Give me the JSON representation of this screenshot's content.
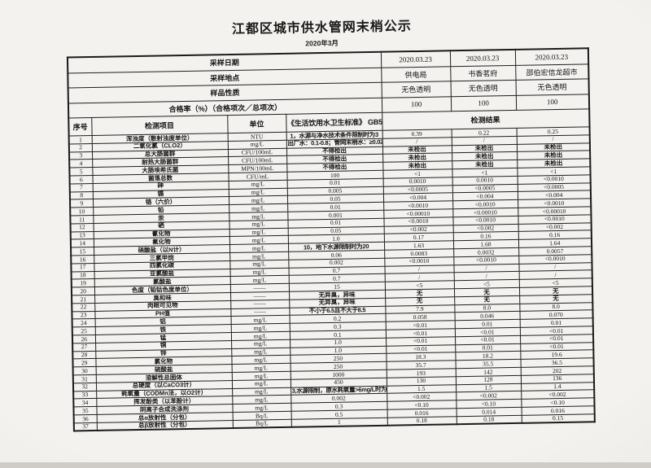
{
  "page": {
    "title": "江都区城市供水管网末梢公示",
    "subtitle": "2020年3月"
  },
  "info": {
    "rows": [
      {
        "label": "采样日期",
        "values": [
          "2020.03.23",
          "2020.03.23",
          "2020.03.23"
        ]
      },
      {
        "label": "采样地点",
        "values": [
          "供电局",
          "书香茗府",
          "邵伯宏信龙超市"
        ]
      },
      {
        "label": "样品性质",
        "values": [
          "无色透明",
          "无色透明",
          "无色透明"
        ]
      },
      {
        "label": "合格率（%）（合格项次／总项次）",
        "values": [
          "100",
          "100",
          "100"
        ]
      }
    ]
  },
  "table": {
    "headers": {
      "no": "序号",
      "item": "检测项目",
      "unit": "单位",
      "standard": "《生活饮用水卫生标准》 GB5749",
      "result": "检测结果"
    },
    "rows": [
      {
        "no": "1",
        "item": "浑浊度（散射浊度单位）",
        "unit": "NTU",
        "standard": "1，水源与净水技术条件限制时为3",
        "results": [
          "0.39",
          "0.22",
          "0.25"
        ]
      },
      {
        "no": "2",
        "item": "二氧化氯（CLO2）",
        "unit": "mg/L",
        "standard": "出厂水：0.1-0.8；管网末梢水：≥0.02",
        "results": [
          "/",
          "/",
          "/"
        ]
      },
      {
        "no": "3",
        "item": "总大肠菌群",
        "unit": "CFU/100mL",
        "standard": "不得检出",
        "results": [
          "未检出",
          "未检出",
          "未检出"
        ]
      },
      {
        "no": "4",
        "item": "耐热大肠菌群",
        "unit": "CFU/100mL",
        "standard": "不得检出",
        "results": [
          "未检出",
          "未检出",
          "未检出"
        ]
      },
      {
        "no": "5",
        "item": "大肠埃希氏菌",
        "unit": "MPN/100mL",
        "standard": "不得检出",
        "results": [
          "未检出",
          "未检出",
          "未检出"
        ]
      },
      {
        "no": "6",
        "item": "菌落总数",
        "unit": "CFU/mL",
        "standard": "100",
        "results": [
          "<1",
          "<1",
          "<1"
        ]
      },
      {
        "no": "7",
        "item": "砷",
        "unit": "mg/L",
        "standard": "0.01",
        "results": [
          "0.0010",
          "0.0010",
          "<0.0010"
        ]
      },
      {
        "no": "8",
        "item": "镉",
        "unit": "mg/L",
        "standard": "0.005",
        "results": [
          "<0.0005",
          "<0.0005",
          "<0.0005"
        ]
      },
      {
        "no": "9",
        "item": "铬（六价）",
        "unit": "mg/L",
        "standard": "0.05",
        "results": [
          "<0.004",
          "<0.004",
          "<0.004"
        ]
      },
      {
        "no": "10",
        "item": "铅",
        "unit": "mg/L",
        "standard": "0.01",
        "results": [
          "<0.0010",
          "<0.0010",
          "<0.0010"
        ]
      },
      {
        "no": "11",
        "item": "汞",
        "unit": "mg/L",
        "standard": "0.001",
        "results": [
          "<0.00010",
          "<0.00010",
          "<0.00010"
        ]
      },
      {
        "no": "12",
        "item": "硒",
        "unit": "mg/L",
        "standard": "0.01",
        "results": [
          "<0.0010",
          "<0.0010",
          "<0.0010"
        ]
      },
      {
        "no": "13",
        "item": "氰化物",
        "unit": "mg/L",
        "standard": "0.05",
        "results": [
          "<0.002",
          "<0.002",
          "<0.002"
        ]
      },
      {
        "no": "14",
        "item": "氟化物",
        "unit": "mg/L",
        "standard": "1.0",
        "results": [
          "0.17",
          "0.16",
          "0.16"
        ]
      },
      {
        "no": "15",
        "item": "硝酸盐（以N计）",
        "unit": "mg/L",
        "standard": "10，地下水源限制时为20",
        "results": [
          "1.63",
          "1.68",
          "1.64"
        ]
      },
      {
        "no": "16",
        "item": "三氯甲烷",
        "unit": "mg/L",
        "standard": "0.06",
        "results": [
          "0.0083",
          "0.0032",
          "0.0057"
        ]
      },
      {
        "no": "17",
        "item": "四氯化碳",
        "unit": "mg/L",
        "standard": "0.002",
        "results": [
          "<0.0010",
          "<0.0010",
          "<0.0010"
        ]
      },
      {
        "no": "18",
        "item": "亚氯酸盐",
        "unit": "mg/L",
        "standard": "0.7",
        "results": [
          "/",
          "/",
          "/"
        ]
      },
      {
        "no": "19",
        "item": "氯酸盐",
        "unit": "mg/L",
        "standard": "0.7",
        "results": [
          "/",
          "/",
          "/"
        ]
      },
      {
        "no": "20",
        "item": "色度（铂钴色度单位）",
        "unit": "——",
        "standard": "15",
        "results": [
          "<5",
          "<5",
          "<5"
        ]
      },
      {
        "no": "21",
        "item": "臭和味",
        "unit": "——",
        "standard": "无异臭，异味",
        "results": [
          "无",
          "无",
          "无"
        ]
      },
      {
        "no": "22",
        "item": "肉眼可见物",
        "unit": "——",
        "standard": "无异臭，异味",
        "results": [
          "无",
          "无",
          "无"
        ]
      },
      {
        "no": "23",
        "item": "PH值",
        "unit": "——",
        "standard": "不小于6.5且不大于8.5",
        "results": [
          "7.9",
          "8.0",
          "8.0"
        ]
      },
      {
        "no": "24",
        "item": "铝",
        "unit": "mg/L",
        "standard": "0.2",
        "results": [
          "0.058",
          "0.046",
          "0.070"
        ]
      },
      {
        "no": "25",
        "item": "铁",
        "unit": "mg/L",
        "standard": "0.3",
        "results": [
          "<0.01",
          "0.01",
          "0.01"
        ]
      },
      {
        "no": "26",
        "item": "锰",
        "unit": "mg/L",
        "standard": "0.1",
        "results": [
          "<0.01",
          "<0.01",
          "<0.01"
        ]
      },
      {
        "no": "27",
        "item": "铜",
        "unit": "mg/L",
        "standard": "1.0",
        "results": [
          "<0.01",
          "<0.01",
          "<0.01"
        ]
      },
      {
        "no": "28",
        "item": "锌",
        "unit": "mg/L",
        "standard": "1.0",
        "results": [
          "<0.01",
          "0.01",
          "<0.01"
        ]
      },
      {
        "no": "29",
        "item": "氯化物",
        "unit": "mg/L",
        "standard": "250",
        "results": [
          "18.3",
          "18.2",
          "19.6"
        ]
      },
      {
        "no": "30",
        "item": "硫酸盐",
        "unit": "mg/L",
        "standard": "250",
        "results": [
          "35.7",
          "35.5",
          "36.5"
        ]
      },
      {
        "no": "31",
        "item": "溶解性总固体",
        "unit": "mg/L",
        "standard": "1000",
        "results": [
          "193",
          "142",
          "202"
        ]
      },
      {
        "no": "32",
        "item": "总硬度（以CaCO3计）",
        "unit": "mg/L",
        "standard": "450",
        "results": [
          "130",
          "128",
          "136"
        ]
      },
      {
        "no": "33",
        "item": "耗氧量（CODMn法，以O2计）",
        "unit": "mg/L",
        "standard": "3,水源限制，原水耗氧量>6mg/L时为5",
        "results": [
          "1.5",
          "1.5",
          "1.4"
        ]
      },
      {
        "no": "34",
        "item": "挥发酚类（以苯酚计）",
        "unit": "mg/L",
        "standard": "0.002",
        "results": [
          "<0.002",
          "<0.002",
          "<0.002"
        ]
      },
      {
        "no": "35",
        "item": "阴离子合成洗涤剂",
        "unit": "mg/L",
        "standard": "0.3",
        "results": [
          "<0.10",
          "<0.10",
          "<0.10"
        ]
      },
      {
        "no": "36",
        "item": "总α放射性（分包）",
        "unit": "Bq/L",
        "standard": "0.5",
        "results": [
          "0.016",
          "0.014",
          "0.016"
        ]
      },
      {
        "no": "37",
        "item": "总β放射性（分包）",
        "unit": "Bq/L",
        "standard": "1",
        "results": [
          "0.18",
          "0.18",
          "0.15"
        ]
      }
    ]
  }
}
